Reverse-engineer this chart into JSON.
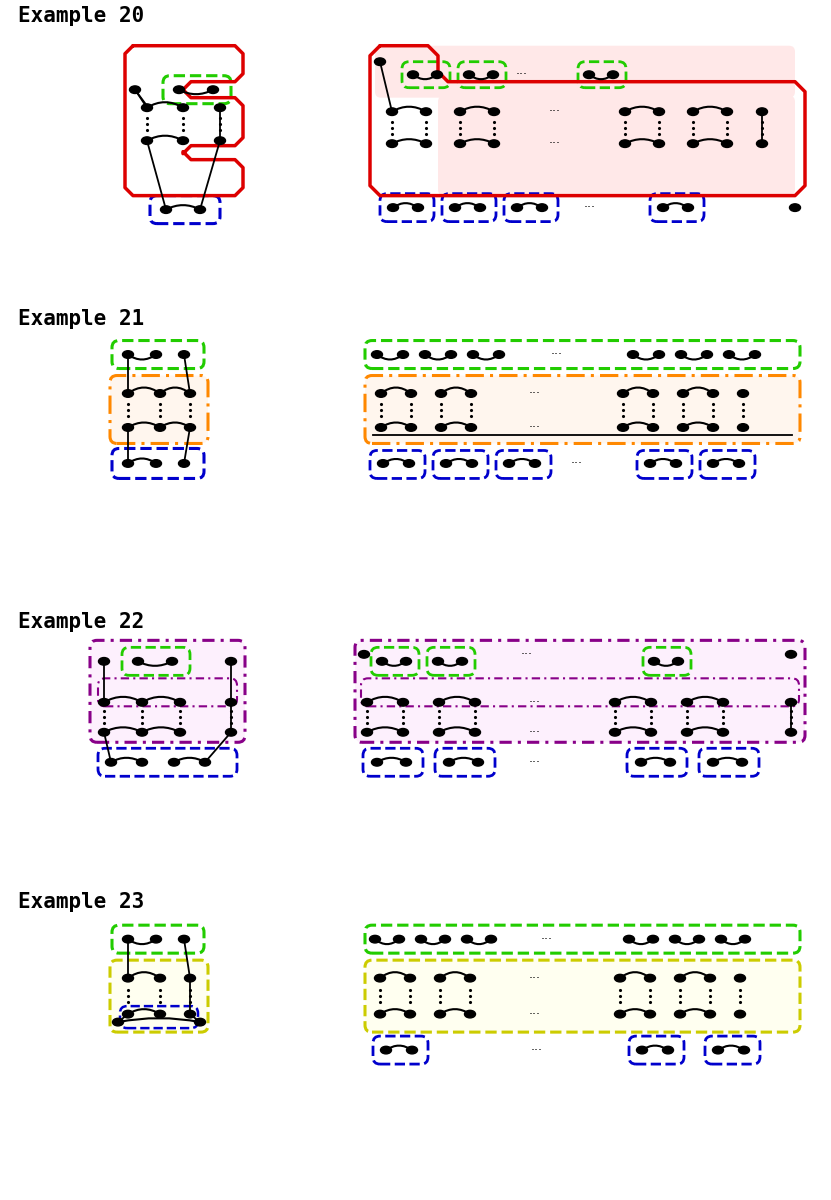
{
  "background": "#ffffff",
  "examples": [
    "Example 20",
    "Example 21",
    "Example 22",
    "Example 23"
  ],
  "colors": {
    "red": "#dd0000",
    "green": "#22cc00",
    "blue": "#0000cc",
    "orange": "#ff8800",
    "purple": "#880088",
    "yellow": "#cccc00"
  }
}
